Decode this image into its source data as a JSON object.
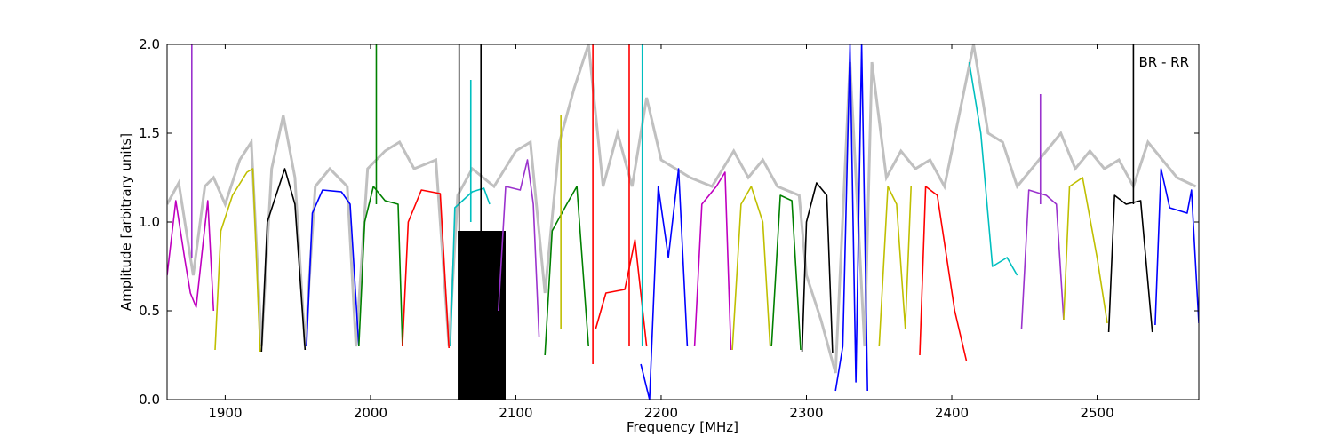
{
  "chart_data": {
    "type": "line",
    "xlabel": "Frequency [MHz]",
    "ylabel": "Amplitude [arbitrary units]",
    "xlim": [
      1860,
      2570
    ],
    "ylim": [
      0.0,
      2.0
    ],
    "xticks": [
      1900,
      2000,
      2100,
      2200,
      2300,
      2400,
      2500
    ],
    "yticks": [
      0.0,
      0.5,
      1.0,
      1.5,
      2.0
    ],
    "x_tick_labels": [
      "1900",
      "2000",
      "2100",
      "2200",
      "2300",
      "2400",
      "2500"
    ],
    "y_tick_labels": [
      "0.0",
      "0.5",
      "1.0",
      "1.5",
      "2.0"
    ],
    "grid": false,
    "annotation": {
      "text": "BR - RR",
      "x": 2525
    },
    "colors": {
      "envelope": "#c0c0c0",
      "series": [
        "#0000ff",
        "#008000",
        "#ff0000",
        "#00bfbf",
        "#bf00bf",
        "#bfbf00",
        "#000000",
        "#9a32cd"
      ]
    },
    "envelope": [
      [
        1860,
        1.1
      ],
      [
        1868,
        1.22
      ],
      [
        1878,
        0.7
      ],
      [
        1886,
        1.2
      ],
      [
        1892,
        1.25
      ],
      [
        1900,
        1.1
      ],
      [
        1910,
        1.35
      ],
      [
        1918,
        1.45
      ],
      [
        1925,
        0.3
      ],
      [
        1932,
        1.3
      ],
      [
        1940,
        1.6
      ],
      [
        1948,
        1.25
      ],
      [
        1955,
        0.3
      ],
      [
        1962,
        1.2
      ],
      [
        1972,
        1.3
      ],
      [
        1984,
        1.2
      ],
      [
        1990,
        0.3
      ],
      [
        1998,
        1.3
      ],
      [
        2010,
        1.4
      ],
      [
        2020,
        1.45
      ],
      [
        2030,
        1.3
      ],
      [
        2045,
        1.35
      ],
      [
        2054,
        0.3
      ],
      [
        2060,
        1.15
      ],
      [
        2070,
        1.3
      ],
      [
        2085,
        1.2
      ],
      [
        2100,
        1.4
      ],
      [
        2110,
        1.45
      ],
      [
        2120,
        0.6
      ],
      [
        2130,
        1.45
      ],
      [
        2140,
        1.75
      ],
      [
        2150,
        2.0
      ],
      [
        2160,
        1.2
      ],
      [
        2170,
        1.5
      ],
      [
        2180,
        1.2
      ],
      [
        2190,
        1.7
      ],
      [
        2200,
        1.35
      ],
      [
        2210,
        1.3
      ],
      [
        2220,
        1.25
      ],
      [
        2235,
        1.2
      ],
      [
        2250,
        1.4
      ],
      [
        2260,
        1.25
      ],
      [
        2270,
        1.35
      ],
      [
        2280,
        1.2
      ],
      [
        2295,
        1.15
      ],
      [
        2300,
        0.7
      ],
      [
        2310,
        0.45
      ],
      [
        2320,
        0.15
      ],
      [
        2330,
        1.9
      ],
      [
        2340,
        0.3
      ],
      [
        2345,
        1.9
      ],
      [
        2355,
        1.25
      ],
      [
        2365,
        1.4
      ],
      [
        2375,
        1.3
      ],
      [
        2385,
        1.35
      ],
      [
        2395,
        1.2
      ],
      [
        2405,
        1.6
      ],
      [
        2415,
        2.0
      ],
      [
        2425,
        1.5
      ],
      [
        2435,
        1.45
      ],
      [
        2445,
        1.2
      ],
      [
        2455,
        1.3
      ],
      [
        2465,
        1.4
      ],
      [
        2475,
        1.5
      ],
      [
        2485,
        1.3
      ],
      [
        2495,
        1.4
      ],
      [
        2505,
        1.3
      ],
      [
        2515,
        1.35
      ],
      [
        2525,
        1.2
      ],
      [
        2535,
        1.45
      ],
      [
        2545,
        1.35
      ],
      [
        2555,
        1.25
      ],
      [
        2568,
        1.2
      ]
    ],
    "series": [
      {
        "color": "#bf00bf",
        "points": [
          [
            1860,
            0.7
          ],
          [
            1866,
            1.12
          ],
          [
            1872,
            0.8
          ],
          [
            1876,
            0.6
          ],
          [
            1880,
            0.52
          ],
          [
            1885,
            0.9
          ],
          [
            1888,
            1.12
          ],
          [
            1892,
            0.5
          ]
        ]
      },
      {
        "color": "#bfbf00",
        "points": [
          [
            1893,
            0.28
          ],
          [
            1897,
            0.95
          ],
          [
            1905,
            1.15
          ],
          [
            1915,
            1.28
          ],
          [
            1919,
            1.3
          ],
          [
            1924,
            0.27
          ]
        ]
      },
      {
        "color": "#000000",
        "points": [
          [
            1925,
            0.27
          ],
          [
            1929,
            1.0
          ],
          [
            1935,
            1.15
          ],
          [
            1941,
            1.3
          ],
          [
            1948,
            1.1
          ],
          [
            1955,
            0.28
          ]
        ]
      },
      {
        "color": "#0000ff",
        "points": [
          [
            1956,
            0.3
          ],
          [
            1960,
            1.05
          ],
          [
            1967,
            1.18
          ],
          [
            1980,
            1.17
          ],
          [
            1986,
            1.1
          ],
          [
            1992,
            0.3
          ]
        ]
      },
      {
        "color": "#008000",
        "points": [
          [
            1992,
            0.3
          ],
          [
            1996,
            1.0
          ],
          [
            2002,
            1.2
          ],
          [
            2010,
            1.12
          ],
          [
            2019,
            1.1
          ],
          [
            2022,
            0.3
          ]
        ]
      },
      {
        "color": "#ff0000",
        "points": [
          [
            2022,
            0.3
          ],
          [
            2026,
            1.0
          ],
          [
            2035,
            1.18
          ],
          [
            2048,
            1.16
          ],
          [
            2054,
            0.29
          ]
        ]
      },
      {
        "color": "#00bfbf",
        "points": [
          [
            2055,
            0.3
          ],
          [
            2058,
            1.08
          ],
          [
            2070,
            1.17
          ],
          [
            2078,
            1.19
          ],
          [
            2082,
            1.1
          ]
        ]
      },
      {
        "color": "#9a32cd",
        "points": [
          [
            2088,
            0.5
          ],
          [
            2093,
            1.2
          ],
          [
            2103,
            1.18
          ],
          [
            2108,
            1.35
          ],
          [
            2112,
            1.1
          ],
          [
            2116,
            0.35
          ]
        ]
      },
      {
        "color": "#008000",
        "points": [
          [
            2120,
            0.25
          ],
          [
            2125,
            0.95
          ],
          [
            2135,
            1.1
          ],
          [
            2142,
            1.2
          ],
          [
            2150,
            0.3
          ]
        ]
      },
      {
        "color": "#ff0000",
        "points": [
          [
            2155,
            0.4
          ],
          [
            2162,
            0.6
          ],
          [
            2175,
            0.62
          ],
          [
            2182,
            0.9
          ],
          [
            2190,
            0.3
          ]
        ]
      },
      {
        "color": "#0000ff",
        "points": [
          [
            2186,
            0.2
          ],
          [
            2192,
            0.0
          ],
          [
            2198,
            1.2
          ],
          [
            2205,
            0.8
          ],
          [
            2212,
            1.3
          ],
          [
            2218,
            0.3
          ]
        ]
      },
      {
        "color": "#bf00bf",
        "points": [
          [
            2223,
            0.3
          ],
          [
            2228,
            1.1
          ],
          [
            2238,
            1.2
          ],
          [
            2244,
            1.28
          ],
          [
            2248,
            0.28
          ]
        ]
      },
      {
        "color": "#bfbf00",
        "points": [
          [
            2249,
            0.28
          ],
          [
            2255,
            1.1
          ],
          [
            2262,
            1.2
          ],
          [
            2270,
            1.0
          ],
          [
            2275,
            0.3
          ]
        ]
      },
      {
        "color": "#008000",
        "points": [
          [
            2276,
            0.3
          ],
          [
            2282,
            1.15
          ],
          [
            2290,
            1.12
          ],
          [
            2296,
            0.28
          ]
        ]
      },
      {
        "color": "#000000",
        "points": [
          [
            2297,
            0.27
          ],
          [
            2300,
            1.0
          ],
          [
            2307,
            1.22
          ],
          [
            2314,
            1.15
          ],
          [
            2318,
            0.26
          ]
        ]
      },
      {
        "color": "#0000ff",
        "points": [
          [
            2320,
            0.05
          ],
          [
            2325,
            0.3
          ],
          [
            2330,
            2.0
          ],
          [
            2334,
            0.1
          ],
          [
            2338,
            2.0
          ],
          [
            2342,
            0.05
          ]
        ]
      },
      {
        "color": "#bfbf00",
        "points": [
          [
            2350,
            0.3
          ],
          [
            2356,
            1.2
          ],
          [
            2362,
            1.1
          ],
          [
            2368,
            0.4
          ],
          [
            2372,
            1.2
          ]
        ]
      },
      {
        "color": "#ff0000",
        "points": [
          [
            2378,
            0.25
          ],
          [
            2382,
            1.2
          ],
          [
            2390,
            1.15
          ],
          [
            2402,
            0.5
          ],
          [
            2410,
            0.22
          ]
        ]
      },
      {
        "color": "#00bfbf",
        "points": [
          [
            2412,
            1.9
          ],
          [
            2420,
            1.5
          ],
          [
            2428,
            0.75
          ],
          [
            2438,
            0.8
          ],
          [
            2445,
            0.7
          ]
        ]
      },
      {
        "color": "#9a32cd",
        "points": [
          [
            2448,
            0.4
          ],
          [
            2453,
            1.18
          ],
          [
            2465,
            1.15
          ],
          [
            2472,
            1.1
          ],
          [
            2477,
            0.45
          ]
        ]
      },
      {
        "color": "#bfbf00",
        "points": [
          [
            2477,
            0.45
          ],
          [
            2481,
            1.2
          ],
          [
            2490,
            1.25
          ],
          [
            2500,
            0.8
          ],
          [
            2507,
            0.43
          ]
        ]
      },
      {
        "color": "#000000",
        "points": [
          [
            2508,
            0.38
          ],
          [
            2512,
            1.15
          ],
          [
            2520,
            1.1
          ],
          [
            2530,
            1.12
          ],
          [
            2538,
            0.38
          ]
        ]
      },
      {
        "color": "#0000ff",
        "points": [
          [
            2540,
            0.42
          ],
          [
            2544,
            1.3
          ],
          [
            2550,
            1.08
          ],
          [
            2562,
            1.05
          ],
          [
            2565,
            1.18
          ],
          [
            2570,
            0.43
          ]
        ]
      }
    ],
    "spikes": [
      {
        "x": 1877,
        "y0": 0.8,
        "y1": 2.0,
        "color": "#9a32cd"
      },
      {
        "x": 2004,
        "y0": 1.1,
        "y1": 2.0,
        "color": "#008000"
      },
      {
        "x": 2061,
        "y0": 0.0,
        "y1": 2.0,
        "color": "#000000"
      },
      {
        "x": 2069,
        "y0": 1.0,
        "y1": 1.8,
        "color": "#00bfbf"
      },
      {
        "x": 2076,
        "y0": 0.0,
        "y1": 2.0,
        "color": "#000000"
      },
      {
        "x": 2131,
        "y0": 0.4,
        "y1": 1.6,
        "color": "#bfbf00"
      },
      {
        "x": 2153,
        "y0": 0.2,
        "y1": 2.0,
        "color": "#ff0000"
      },
      {
        "x": 2178,
        "y0": 0.3,
        "y1": 2.0,
        "color": "#ff0000"
      },
      {
        "x": 2187,
        "y0": 0.3,
        "y1": 2.0,
        "color": "#00bfbf"
      },
      {
        "x": 2461,
        "y0": 1.1,
        "y1": 1.72,
        "color": "#9a32cd"
      },
      {
        "x": 2525,
        "y0": 1.1,
        "y1": 2.0,
        "color": "#000000"
      }
    ],
    "filled_band": {
      "x0": 2060,
      "x1": 2093,
      "y0": 0.0,
      "y1": 0.95,
      "color": "#000000"
    }
  }
}
